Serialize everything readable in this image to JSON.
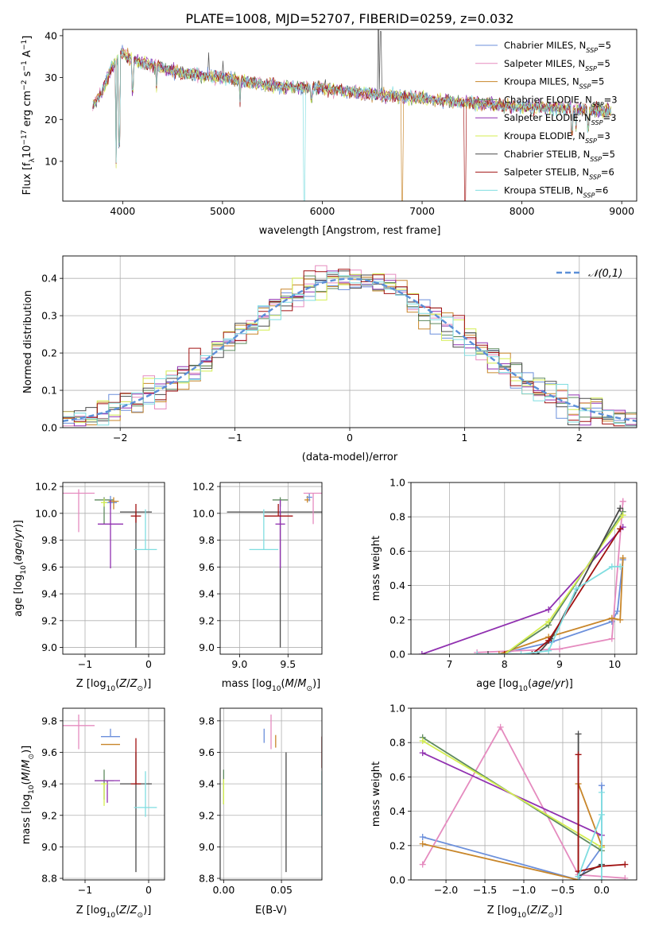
{
  "figure_title": "PLATE=1008, MJD=52707, FIBERID=0259, z=0.032",
  "legend": [
    {
      "name": "Chabrier MILES, N_SSP=5",
      "label": "Chabrier MILES, N",
      "sub": "SSP",
      "suffix": "=5",
      "color": "#6b8fdb"
    },
    {
      "name": "Salpeter MILES, N_SSP=5",
      "label": "Salpeter MILES, N",
      "sub": "SSP",
      "suffix": "=5",
      "color": "#e58bbf"
    },
    {
      "name": "Kroupa MILES, N_SSP=5",
      "label": "Kroupa MILES, N",
      "sub": "SSP",
      "suffix": "=5",
      "color": "#c8862a"
    },
    {
      "name": "Chabrier ELODIE, N_SSP=3",
      "label": "Chabrier ELODIE, N",
      "sub": "SSP",
      "suffix": "=3",
      "color": "#5e8a5e"
    },
    {
      "name": "Salpeter ELODIE, N_SSP=3",
      "label": "Salpeter ELODIE, N",
      "sub": "SSP",
      "suffix": "=3",
      "color": "#9030b0"
    },
    {
      "name": "Kroupa ELODIE, N_SSP=3",
      "label": "Kroupa ELODIE, N",
      "sub": "SSP",
      "suffix": "=3",
      "color": "#d4ee50"
    },
    {
      "name": "Chabrier STELIB, N_SSP=5",
      "label": "Chabrier STELIB, N",
      "sub": "SSP",
      "suffix": "=5",
      "color": "#4a4a4a"
    },
    {
      "name": "Salpeter STELIB, N_SSP=6",
      "label": "Salpeter STELIB, N",
      "sub": "SSP",
      "suffix": "=6",
      "color": "#a01010"
    },
    {
      "name": "Kroupa STELIB, N_SSP=6",
      "label": "Kroupa STELIB, N",
      "sub": "SSP",
      "suffix": "=6",
      "color": "#7fdde0"
    }
  ],
  "chart_data": [
    {
      "type": "line",
      "panel": "spectrum",
      "xlabel": "wavelength [Angstrom, rest frame]",
      "ylabel": "Flux [f_λ 10^-17 erg cm^-2 s^-1 A^-1]",
      "xlim": [
        3400,
        9150
      ],
      "ylim": [
        0.5,
        41.5
      ],
      "xticks": [
        4000,
        5000,
        6000,
        7000,
        8000,
        9000
      ],
      "yticks": [
        10,
        20,
        30,
        40
      ],
      "continuum": [
        [
          3700,
          23
        ],
        [
          3800,
          27
        ],
        [
          3900,
          33
        ],
        [
          4000,
          36
        ],
        [
          4100,
          34
        ],
        [
          4300,
          33
        ],
        [
          4600,
          31
        ],
        [
          5000,
          30
        ],
        [
          5500,
          28
        ],
        [
          6000,
          27.5
        ],
        [
          6500,
          26
        ],
        [
          7000,
          25
        ],
        [
          7500,
          24
        ],
        [
          8000,
          23
        ],
        [
          8500,
          22.5
        ],
        [
          8900,
          22
        ]
      ],
      "emission_lines": [
        [
          6563,
          52
        ],
        [
          6584,
          41
        ],
        [
          4861,
          36
        ],
        [
          5007,
          34
        ]
      ],
      "absorption_lines": [
        [
          3934,
          9
        ],
        [
          3968,
          14
        ],
        [
          4101,
          27
        ],
        [
          4340,
          27
        ],
        [
          5175,
          24
        ],
        [
          5890,
          25
        ],
        [
          8500,
          17
        ],
        [
          8542,
          18
        ],
        [
          8662,
          18
        ]
      ],
      "cutoffs": [
        {
          "series": "Kroupa STELIB, N_SSP=6",
          "x": 5810,
          "drop_to": 0.5
        },
        {
          "series": "Kroupa MILES, N_SSP=5",
          "x": 6790,
          "drop_to": 0.5
        },
        {
          "series": "Salpeter STELIB, N_SSP=6",
          "x": 7420,
          "drop_to": 0.5
        }
      ],
      "grid": false,
      "legend_position": "upper right"
    },
    {
      "type": "histogram",
      "panel": "residuals",
      "xlabel": "(data-model)/error",
      "ylabel": "Normed distribution",
      "xlim": [
        -2.5,
        2.5
      ],
      "ylim": [
        0,
        0.46
      ],
      "xticks": [
        -2,
        -1,
        0,
        1,
        2
      ],
      "yticks": [
        0.0,
        0.1,
        0.2,
        0.3,
        0.4
      ],
      "bin_width": 0.1,
      "reference": {
        "label": "𝒩(0,1)",
        "color": "#5b8fd8",
        "style": "dashed"
      },
      "grid": true,
      "legend_position": "upper right"
    },
    {
      "type": "scatter_errorbar",
      "panel": "age-vs-Z",
      "xlabel": "Z [log10(Z/Z⊙)]",
      "ylabel": "age [log10(age/yr)]",
      "xlim": [
        -1.35,
        0.25
      ],
      "ylim": [
        8.95,
        10.23
      ],
      "xticks": [
        -1,
        0
      ],
      "yticks": [
        9.0,
        9.2,
        9.4,
        9.6,
        9.8,
        10.0,
        10.2
      ],
      "points": [
        {
          "x": -1.1,
          "xerr": 0.25,
          "y": 10.15,
          "yerr_lo": 0.29,
          "yerr_hi": 0.03,
          "color": "#e58bbf"
        },
        {
          "x": -0.7,
          "xerr": 0.15,
          "y": 10.1,
          "yerr_lo": 0.18,
          "yerr_hi": 0.02,
          "color": "#5e8a5e"
        },
        {
          "x": -0.6,
          "xerr": 0.1,
          "y": 10.08,
          "yerr_lo": 0.05,
          "yerr_hi": 0.05,
          "color": "#6b8fdb"
        },
        {
          "x": -0.55,
          "xerr": 0.08,
          "y": 10.09,
          "yerr_lo": 0.06,
          "yerr_hi": 0.03,
          "color": "#c8862a"
        },
        {
          "x": -0.6,
          "xerr": 0.2,
          "y": 9.92,
          "yerr_lo": 0.33,
          "yerr_hi": 0.18,
          "color": "#9030b0"
        },
        {
          "x": -0.2,
          "xerr": 0.25,
          "y": 10.01,
          "yerr_lo": 1.01,
          "yerr_hi": 0.0,
          "color": "#4a4a4a"
        },
        {
          "x": -0.2,
          "xerr": 0.08,
          "y": 9.98,
          "yerr_lo": 0.05,
          "yerr_hi": 0.09,
          "color": "#a01010"
        },
        {
          "x": -0.05,
          "xerr": 0.18,
          "y": 9.73,
          "yerr_lo": 0.0,
          "yerr_hi": 0.3,
          "color": "#7fdde0"
        },
        {
          "x": -0.7,
          "xerr": 0.05,
          "y": 10.08,
          "yerr_lo": 0.03,
          "yerr_hi": 0.03,
          "color": "#d4ee50"
        }
      ],
      "grid": true
    },
    {
      "type": "scatter_errorbar",
      "panel": "age-vs-mass",
      "xlabel": "mass [log10(M/M⊙)]",
      "ylabel": "",
      "xlim": [
        8.8,
        9.85
      ],
      "ylim": [
        8.95,
        10.23
      ],
      "xticks": [
        9.0,
        9.5
      ],
      "yticks": [
        9.0,
        9.2,
        9.4,
        9.6,
        9.8,
        10.0,
        10.2
      ],
      "points": [
        {
          "x": 9.42,
          "xerr": 0.55,
          "y": 10.01,
          "yerr_lo": 1.01,
          "yerr_hi": 0.0,
          "color": "#4a4a4a"
        },
        {
          "x": 9.42,
          "xerr": 0.08,
          "y": 10.1,
          "yerr_lo": 0.05,
          "yerr_hi": 0.02,
          "color": "#5e8a5e"
        },
        {
          "x": 9.42,
          "xerr": 0.05,
          "y": 9.92,
          "yerr_lo": 0.33,
          "yerr_hi": 0.18,
          "color": "#9030b0"
        },
        {
          "x": 9.4,
          "xerr": 0.15,
          "y": 9.98,
          "yerr_lo": 0.0,
          "yerr_hi": 0.09,
          "color": "#a01010"
        },
        {
          "x": 9.25,
          "xerr": 0.15,
          "y": 9.73,
          "yerr_lo": 0.0,
          "yerr_hi": 0.3,
          "color": "#7fdde0"
        },
        {
          "x": 9.7,
          "xerr": 0.03,
          "y": 10.1,
          "yerr_lo": 0.02,
          "yerr_hi": 0.03,
          "color": "#c8862a"
        },
        {
          "x": 9.72,
          "xerr": 0.03,
          "y": 10.12,
          "yerr_lo": 0.03,
          "yerr_hi": 0.03,
          "color": "#6b8fdb"
        },
        {
          "x": 9.76,
          "xerr": 0.1,
          "y": 10.15,
          "yerr_lo": 0.23,
          "yerr_hi": 0.0,
          "color": "#e58bbf"
        }
      ],
      "grid": true
    },
    {
      "type": "line",
      "panel": "mass-weight-vs-age",
      "xlabel": "age [log10(age/yr)]",
      "ylabel": "mass weight",
      "xlim": [
        6.3,
        10.4
      ],
      "ylim": [
        0,
        1
      ],
      "xticks": [
        7,
        8,
        9,
        10
      ],
      "yticks": [
        0.0,
        0.2,
        0.4,
        0.6,
        0.8,
        1.0
      ],
      "series": [
        {
          "name": "Chabrier MILES",
          "color": "#6b8fdb",
          "x": [
            7.9,
            8.85,
            9.95,
            10.05,
            10.15
          ],
          "y": [
            0.0,
            0.07,
            0.19,
            0.25,
            0.55
          ]
        },
        {
          "name": "Salpeter MILES",
          "color": "#e58bbf",
          "x": [
            7.5,
            9.0,
            9.95,
            10.15,
            10.15
          ],
          "y": [
            0.01,
            0.03,
            0.09,
            0.89,
            0.89
          ]
        },
        {
          "name": "Kroupa MILES",
          "color": "#c8862a",
          "x": [
            7.9,
            8.8,
            9.95,
            10.1,
            10.15
          ],
          "y": [
            0.0,
            0.1,
            0.21,
            0.2,
            0.56
          ]
        },
        {
          "name": "Chabrier ELODIE",
          "color": "#5e8a5e",
          "x": [
            8.0,
            8.8,
            10.15
          ],
          "y": [
            0.0,
            0.17,
            0.83
          ]
        },
        {
          "name": "Salpeter ELODIE",
          "color": "#9030b0",
          "x": [
            6.5,
            8.8,
            10.15
          ],
          "y": [
            0.0,
            0.26,
            0.74
          ]
        },
        {
          "name": "Kroupa ELODIE",
          "color": "#d4ee50",
          "x": [
            8.0,
            8.8,
            10.15
          ],
          "y": [
            0.0,
            0.19,
            0.81
          ]
        },
        {
          "name": "Chabrier STELIB",
          "color": "#4a4a4a",
          "x": [
            7.7,
            8.6,
            8.85,
            10.1
          ],
          "y": [
            0.0,
            0.0,
            0.09,
            0.85
          ]
        },
        {
          "name": "Salpeter STELIB",
          "color": "#a01010",
          "x": [
            8.0,
            8.5,
            8.8,
            10.1
          ],
          "y": [
            0.0,
            0.0,
            0.08,
            0.73
          ]
        },
        {
          "name": "Kroupa STELIB",
          "color": "#7fdde0",
          "x": [
            7.5,
            8.3,
            8.8,
            9.3,
            9.95,
            10.1
          ],
          "y": [
            0.0,
            0.0,
            0.02,
            0.38,
            0.51,
            0.51
          ]
        }
      ],
      "grid": true
    },
    {
      "type": "scatter_errorbar",
      "panel": "mass-vs-Z",
      "xlabel": "Z [log10(Z/Z⊙)]",
      "ylabel": "mass [log10(M/M⊙)]",
      "xlim": [
        -1.35,
        0.25
      ],
      "ylim": [
        8.79,
        9.88
      ],
      "xticks": [
        -1,
        0
      ],
      "yticks": [
        8.8,
        9.0,
        9.2,
        9.4,
        9.6,
        9.8
      ],
      "points": [
        {
          "x": -1.1,
          "xerr": 0.25,
          "y": 9.77,
          "yerr_lo": 0.15,
          "yerr_hi": 0.07,
          "color": "#e58bbf"
        },
        {
          "x": -0.6,
          "xerr": 0.15,
          "y": 9.7,
          "yerr_lo": 0.0,
          "yerr_hi": 0.05,
          "color": "#6b8fdb"
        },
        {
          "x": -0.6,
          "xerr": 0.15,
          "y": 9.65,
          "yerr_lo": 0.0,
          "yerr_hi": 0.0,
          "color": "#c8862a"
        },
        {
          "x": -0.7,
          "xerr": 0.15,
          "y": 9.42,
          "yerr_lo": 0.12,
          "yerr_hi": 0.07,
          "color": "#5e8a5e"
        },
        {
          "x": -0.65,
          "xerr": 0.2,
          "y": 9.42,
          "yerr_lo": 0.14,
          "yerr_hi": 0.0,
          "color": "#9030b0"
        },
        {
          "x": -0.7,
          "xerr": 0.05,
          "y": 9.4,
          "yerr_lo": 0.14,
          "yerr_hi": 0.0,
          "color": "#d4ee50"
        },
        {
          "x": -0.2,
          "xerr": 0.25,
          "y": 9.4,
          "yerr_lo": 0.56,
          "yerr_hi": 0.2,
          "color": "#4a4a4a"
        },
        {
          "x": -0.2,
          "xerr": 0.08,
          "y": 9.4,
          "yerr_lo": 0.0,
          "yerr_hi": 0.29,
          "color": "#a01010"
        },
        {
          "x": -0.05,
          "xerr": 0.18,
          "y": 9.25,
          "yerr_lo": 0.06,
          "yerr_hi": 0.23,
          "color": "#7fdde0"
        }
      ],
      "grid": true
    },
    {
      "type": "scatter_errorbar",
      "panel": "mass-vs-ebv",
      "xlabel": "E(B-V)",
      "ylabel": "",
      "xlim": [
        -0.003,
        0.085
      ],
      "ylim": [
        8.79,
        9.88
      ],
      "xticks": [
        0.0,
        0.05
      ],
      "yticks": [
        8.8,
        9.0,
        9.2,
        9.4,
        9.6,
        9.8
      ],
      "points": [
        {
          "x": 0.0,
          "y": 9.38,
          "yerr_lo": 0.11,
          "yerr_hi": 0.11,
          "color": "#5e8a5e"
        },
        {
          "x": 0.0,
          "y": 9.38,
          "yerr_lo": 0.11,
          "yerr_hi": 0.05,
          "color": "#d4ee50"
        },
        {
          "x": 0.035,
          "y": 9.7,
          "yerr_lo": 0.04,
          "yerr_hi": 0.05,
          "color": "#6b8fdb"
        },
        {
          "x": 0.041,
          "y": 9.74,
          "yerr_lo": 0.12,
          "yerr_hi": 0.1,
          "color": "#e58bbf"
        },
        {
          "x": 0.045,
          "y": 9.67,
          "yerr_lo": 0.04,
          "yerr_hi": 0.04,
          "color": "#c8862a"
        },
        {
          "x": 0.054,
          "y": 9.3,
          "yerr_lo": 0.46,
          "yerr_hi": 0.3,
          "color": "#4a4a4a"
        },
        {
          "x": 0.085,
          "y": 9.55,
          "yerr_lo": 0.05,
          "yerr_hi": 0.15,
          "color": "#a01010"
        },
        {
          "x": 0.085,
          "y": 9.35,
          "yerr_lo": 0.15,
          "yerr_hi": 0.13,
          "color": "#7fdde0"
        }
      ],
      "grid": true
    },
    {
      "type": "line",
      "panel": "mass-weight-vs-Z",
      "xlabel": "Z [log10(Z/Z⊙)]",
      "ylabel": "mass weight",
      "xlim": [
        -2.45,
        0.45
      ],
      "ylim": [
        0,
        1
      ],
      "xticks": [
        -2.0,
        -1.5,
        -1.0,
        -0.5,
        0.0
      ],
      "yticks": [
        0.0,
        0.2,
        0.4,
        0.6,
        0.8,
        1.0
      ],
      "series": [
        {
          "name": "Chabrier MILES",
          "color": "#6b8fdb",
          "x": [
            -2.3,
            -0.3,
            0.0,
            0.0
          ],
          "y": [
            0.25,
            0.0,
            0.19,
            0.55
          ]
        },
        {
          "name": "Salpeter MILES",
          "color": "#e58bbf",
          "x": [
            -2.3,
            -1.3,
            -0.3,
            0.3
          ],
          "y": [
            0.09,
            0.89,
            0.03,
            0.01
          ]
        },
        {
          "name": "Kroupa MILES",
          "color": "#c8862a",
          "x": [
            -2.3,
            -0.3,
            -0.3,
            0.0
          ],
          "y": [
            0.21,
            0.0,
            0.56,
            0.2
          ]
        },
        {
          "name": "Chabrier ELODIE",
          "color": "#5e8a5e",
          "x": [
            -2.3,
            0.0
          ],
          "y": [
            0.83,
            0.17
          ]
        },
        {
          "name": "Salpeter ELODIE",
          "color": "#9030b0",
          "x": [
            -2.3,
            0.0
          ],
          "y": [
            0.74,
            0.26
          ]
        },
        {
          "name": "Kroupa ELODIE",
          "color": "#d4ee50",
          "x": [
            -2.3,
            0.0
          ],
          "y": [
            0.81,
            0.19
          ]
        },
        {
          "name": "Chabrier STELIB",
          "color": "#4a4a4a",
          "x": [
            -0.3,
            -0.3,
            0.0
          ],
          "y": [
            0.85,
            0.02,
            0.09
          ]
        },
        {
          "name": "Salpeter STELIB",
          "color": "#a01010",
          "x": [
            -0.3,
            -0.3,
            0.0,
            0.3
          ],
          "y": [
            0.73,
            0.05,
            0.08,
            0.09
          ]
        },
        {
          "name": "Kroupa STELIB",
          "color": "#7fdde0",
          "x": [
            -0.3,
            0.0,
            0.0,
            0.0
          ],
          "y": [
            0.02,
            0.38,
            0.51,
            0.0
          ]
        }
      ],
      "grid": true
    }
  ]
}
